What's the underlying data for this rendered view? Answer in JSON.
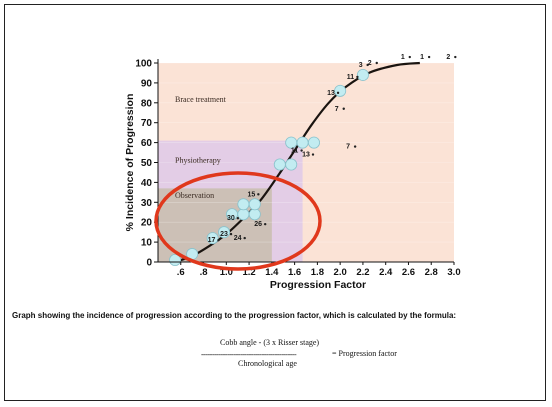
{
  "chart_data": {
    "type": "scatter",
    "xlabel": "Progression Factor",
    "ylabel": "% Incidence of Progression",
    "xlim": [
      0.4,
      3.0
    ],
    "ylim": [
      0,
      100
    ],
    "x_ticks": [
      ".6",
      ".8",
      "1.0",
      "1.2",
      "1.4",
      "1.6",
      "1.8",
      "2.0",
      "2.2",
      "2.4",
      "2.6",
      "2.8",
      "3.0"
    ],
    "x_tick_values": [
      0.6,
      0.8,
      1.0,
      1.2,
      1.4,
      1.6,
      1.8,
      2.0,
      2.2,
      2.4,
      2.6,
      2.8,
      3.0
    ],
    "y_ticks": [
      "0",
      "10",
      "20",
      "30",
      "40",
      "50",
      "60",
      "70",
      "80",
      "90",
      "100"
    ],
    "y_tick_values": [
      0,
      10,
      20,
      30,
      40,
      50,
      60,
      70,
      80,
      90,
      100
    ],
    "zones": [
      {
        "label": "Brace treatment",
        "x0": 0.4,
        "x1": 3.0,
        "y0": 0,
        "y1": 100,
        "color": "#fbe3d6"
      },
      {
        "label": "Physiotherapy",
        "x0": 0.4,
        "x1": 1.67,
        "y0": 0,
        "y1": 61,
        "color": "#e3cde6"
      },
      {
        "label": "Observation",
        "x0": 0.4,
        "x1": 1.4,
        "y0": 0,
        "y1": 37,
        "color": "#ccc0b6"
      }
    ],
    "curve": [
      {
        "x": 0.55,
        "y": 0
      },
      {
        "x": 0.7,
        "y": 3
      },
      {
        "x": 0.85,
        "y": 8
      },
      {
        "x": 1.0,
        "y": 14
      },
      {
        "x": 1.15,
        "y": 22
      },
      {
        "x": 1.3,
        "y": 31
      },
      {
        "x": 1.45,
        "y": 43
      },
      {
        "x": 1.6,
        "y": 56
      },
      {
        "x": 1.75,
        "y": 69
      },
      {
        "x": 1.9,
        "y": 80
      },
      {
        "x": 2.05,
        "y": 88
      },
      {
        "x": 2.25,
        "y": 95
      },
      {
        "x": 2.5,
        "y": 99
      },
      {
        "x": 2.7,
        "y": 100
      }
    ],
    "circles": [
      {
        "x": 0.55,
        "y": 1
      },
      {
        "x": 0.7,
        "y": 4
      },
      {
        "x": 0.88,
        "y": 12
      },
      {
        "x": 0.98,
        "y": 15
      },
      {
        "x": 1.05,
        "y": 24
      },
      {
        "x": 1.15,
        "y": 24
      },
      {
        "x": 1.25,
        "y": 24
      },
      {
        "x": 1.15,
        "y": 29
      },
      {
        "x": 1.25,
        "y": 29
      },
      {
        "x": 1.47,
        "y": 49
      },
      {
        "x": 1.57,
        "y": 49
      },
      {
        "x": 1.57,
        "y": 60
      },
      {
        "x": 1.67,
        "y": 60
      },
      {
        "x": 1.77,
        "y": 60
      },
      {
        "x": 2.0,
        "y": 86
      },
      {
        "x": 2.2,
        "y": 94
      }
    ],
    "labeled_points": [
      {
        "x": 0.87,
        "y": 10,
        "label": "17"
      },
      {
        "x": 0.98,
        "y": 13,
        "label": "23"
      },
      {
        "x": 1.04,
        "y": 21,
        "label": "30"
      },
      {
        "x": 1.1,
        "y": 11,
        "label": "24"
      },
      {
        "x": 1.22,
        "y": 33,
        "label": "15"
      },
      {
        "x": 1.28,
        "y": 18,
        "label": "26"
      },
      {
        "x": 1.6,
        "y": 55,
        "label": "11"
      },
      {
        "x": 1.7,
        "y": 53,
        "label": "13"
      },
      {
        "x": 1.92,
        "y": 84,
        "label": "13"
      },
      {
        "x": 1.97,
        "y": 76,
        "label": "7"
      },
      {
        "x": 2.07,
        "y": 57,
        "label": "7"
      },
      {
        "x": 2.09,
        "y": 92,
        "label": "11"
      },
      {
        "x": 2.18,
        "y": 98,
        "label": "3"
      },
      {
        "x": 2.26,
        "y": 99,
        "label": "2"
      },
      {
        "x": 2.55,
        "y": 102,
        "label": "1"
      },
      {
        "x": 2.72,
        "y": 102,
        "label": "1"
      },
      {
        "x": 2.95,
        "y": 102,
        "label": "2"
      }
    ],
    "annotation": "red ellipse encircling the Observation zone"
  },
  "caption": "Graph showing the incidence of progression according to the progression factor, which is calculated by the formula:",
  "formula": {
    "numerator": "Cobb angle - (3 x Risser stage)",
    "fraction_line": "--------------------------------------------",
    "denominator": "Chronological age",
    "result": "= Progression factor"
  },
  "colors": {
    "circle_fill": "#c2ecf1",
    "circle_stroke": "#8ac2cc",
    "ellipse": "#e0381c",
    "curve": "#1a1410"
  }
}
